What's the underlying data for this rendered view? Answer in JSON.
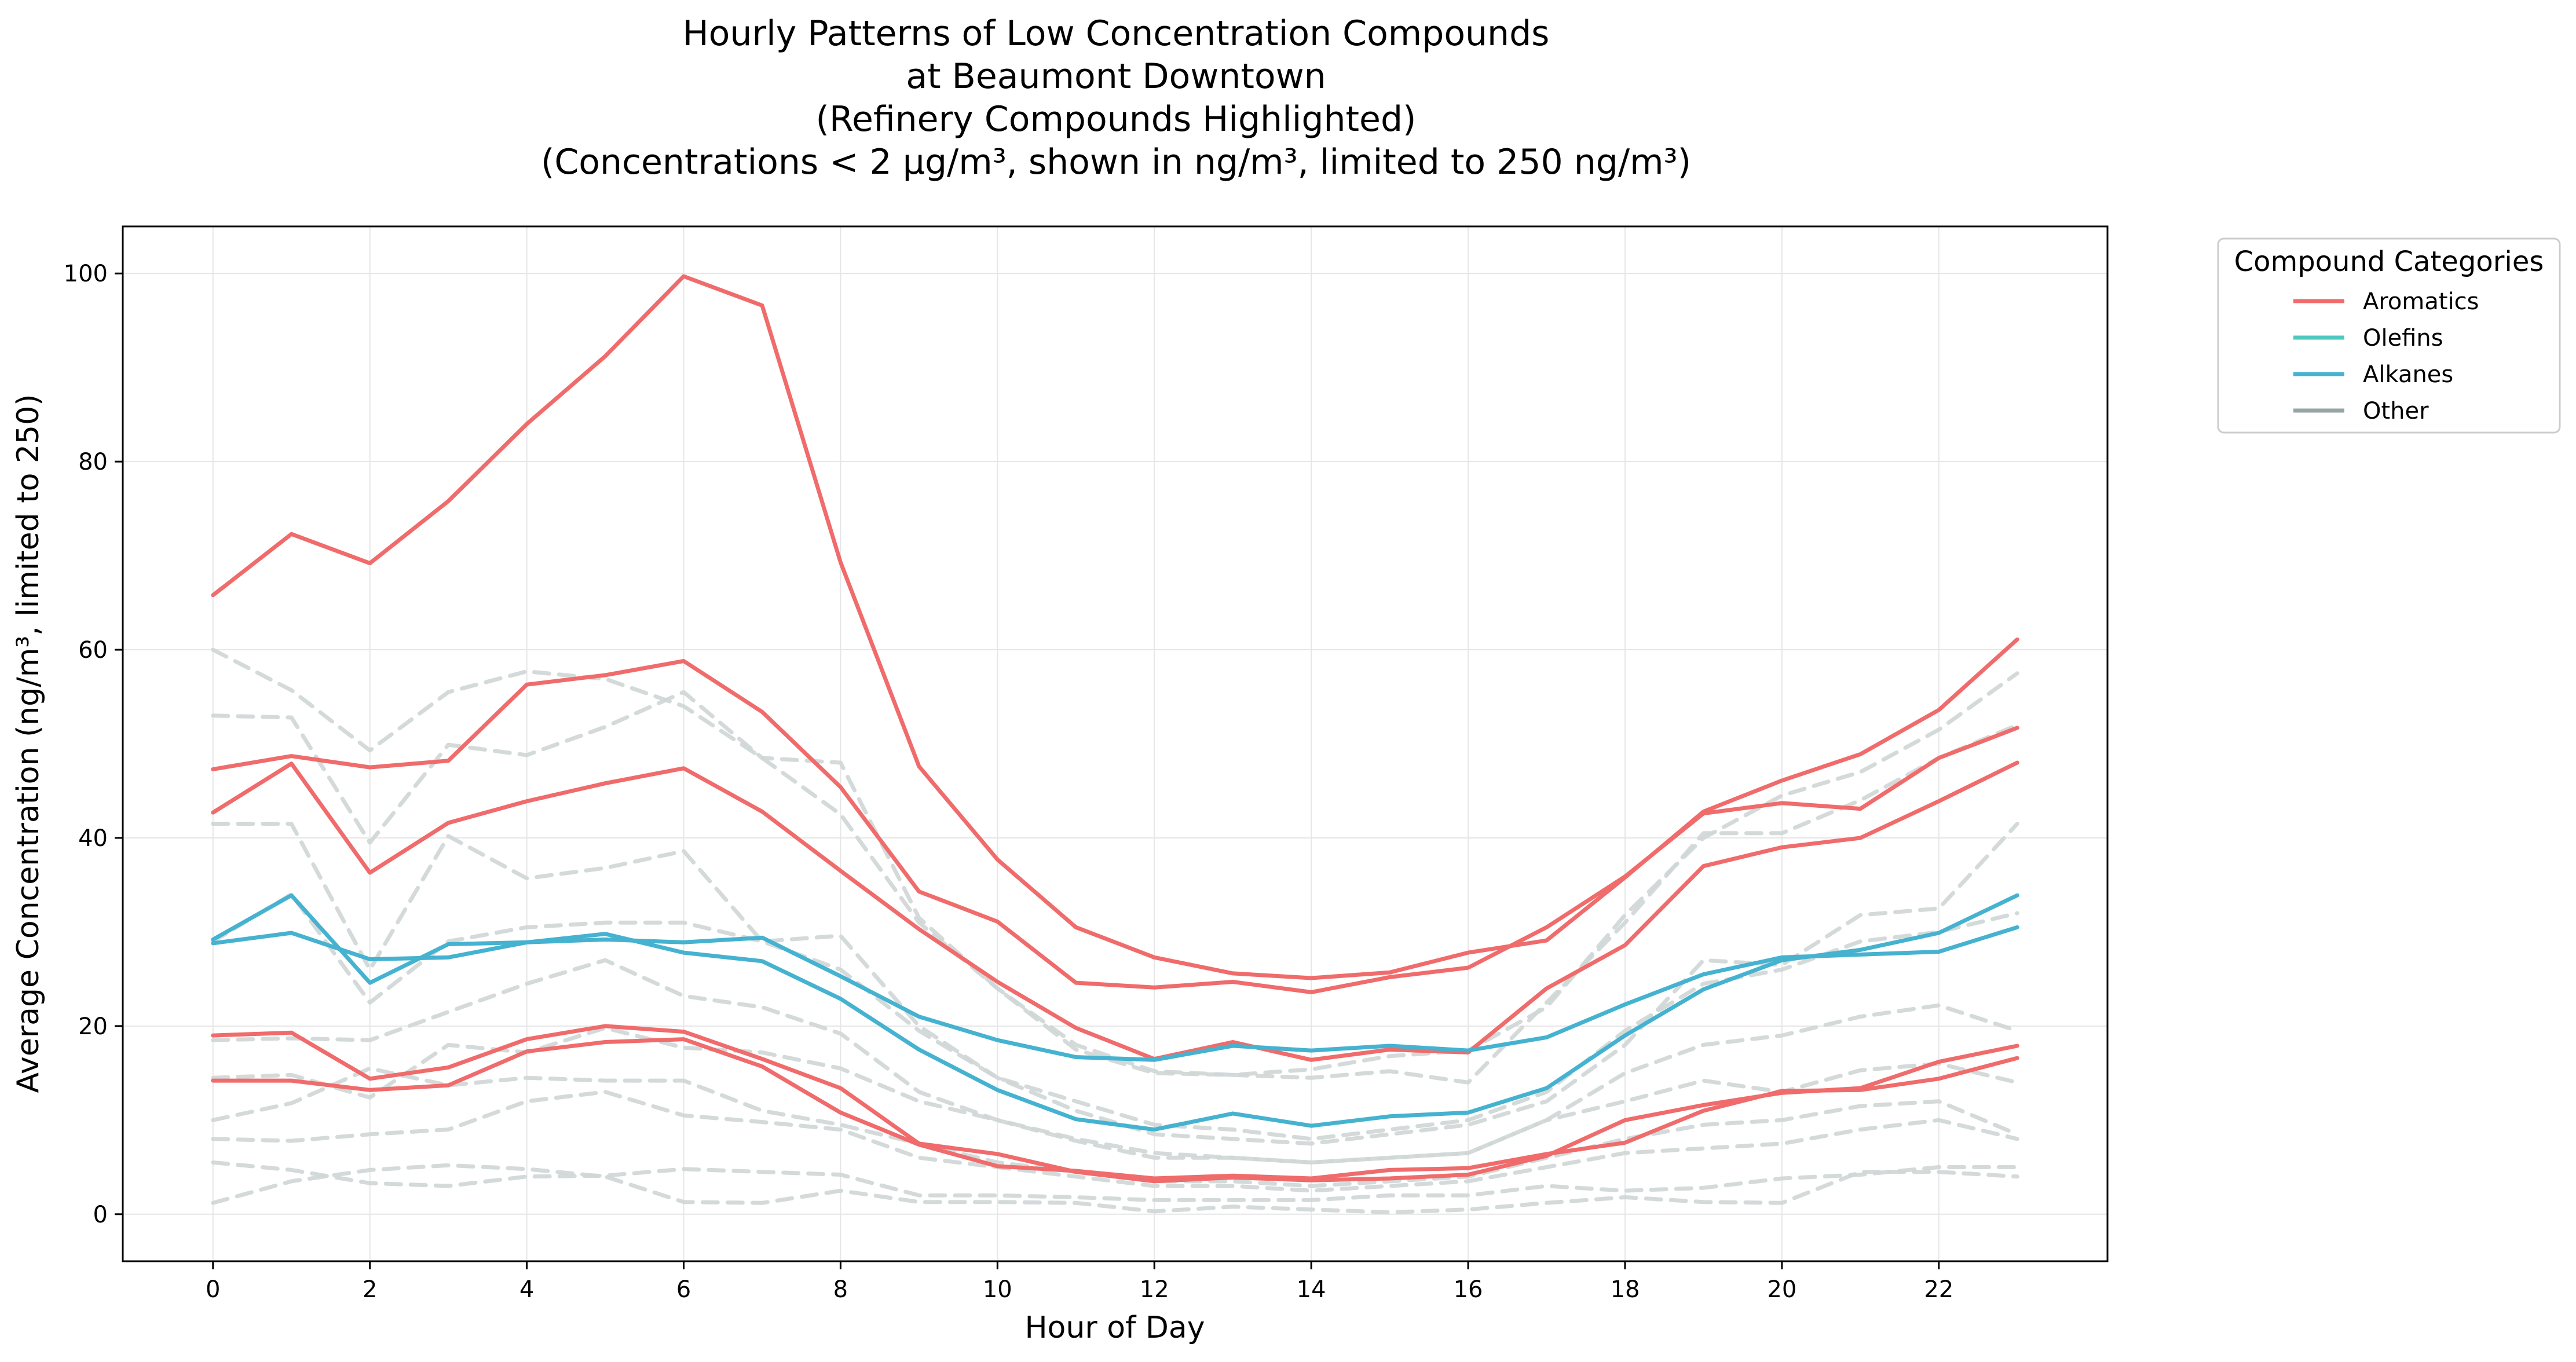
{
  "chart_data": {
    "type": "line",
    "title_lines": [
      "Hourly Patterns of Low Concentration Compounds",
      "at Beaumont Downtown",
      "(Refinery Compounds Highlighted)",
      "(Concentrations < 2 µg/m³, shown in ng/m³, limited to 250 ng/m³)"
    ],
    "xlabel": "Hour of Day",
    "ylabel": "Average Concentration (ng/m³, limited to 250)",
    "xlim": [
      -1.15,
      24.15
    ],
    "ylim": [
      -5,
      105
    ],
    "xticks": [
      0,
      2,
      4,
      6,
      8,
      10,
      12,
      14,
      16,
      18,
      20,
      22
    ],
    "yticks": [
      0,
      20,
      40,
      60,
      80,
      100
    ],
    "grid": true,
    "legend": {
      "title": "Compound Categories",
      "placement": "outside-top-right",
      "entries": [
        {
          "label": "Aromatics",
          "color": "#f06b6b"
        },
        {
          "label": "Olefins",
          "color": "#4ec9bf"
        },
        {
          "label": "Alkanes",
          "color": "#45b2d0"
        },
        {
          "label": "Other",
          "color": "#95a5a6"
        }
      ]
    },
    "x": [
      0,
      1,
      2,
      3,
      4,
      5,
      6,
      7,
      8,
      9,
      10,
      11,
      12,
      13,
      14,
      15,
      16,
      17,
      18,
      19,
      20,
      21,
      22,
      23
    ],
    "series": [
      {
        "category": "Other",
        "color": "#cfd6d6",
        "style": "dashed",
        "values": [
          60,
          55.7,
          49.3,
          55.5,
          57.7,
          56.9,
          54,
          48.5,
          42.5,
          31,
          24,
          18,
          15.2,
          14.8,
          15.4,
          16.8,
          17.4,
          22,
          31.8,
          40,
          44.5,
          47,
          51.5,
          57.5
        ]
      },
      {
        "category": "Other",
        "color": "#cfd6d6",
        "style": "dashed",
        "values": [
          53,
          52.8,
          39.5,
          49.9,
          48.8,
          51.8,
          55.5,
          48.5,
          48,
          31.5,
          24,
          17.5,
          15,
          14.8,
          14.5,
          15.2,
          14,
          22.5,
          31,
          40.5,
          40.5,
          44,
          48.5,
          52
        ]
      },
      {
        "category": "Other",
        "color": "#cfd6d6",
        "style": "dashed",
        "values": [
          41.5,
          41.5,
          26,
          40.2,
          35.7,
          36.8,
          38.6,
          29,
          29.6,
          20,
          14.5,
          11,
          8.5,
          8,
          7.5,
          8.5,
          9.5,
          12,
          18,
          27,
          26.5,
          31.8,
          32.5,
          41.5
        ]
      },
      {
        "category": "Other",
        "color": "#cfd6d6",
        "style": "dashed",
        "values": [
          29,
          34,
          22.5,
          29,
          30.5,
          31,
          31,
          29,
          26,
          19.5,
          14.5,
          12,
          9.5,
          9,
          8,
          9,
          10,
          13,
          19.5,
          24.5,
          26,
          29,
          30,
          32
        ]
      },
      {
        "category": "Other",
        "color": "#cfd6d6",
        "style": "dashed",
        "values": [
          18.5,
          18.7,
          18.5,
          21.5,
          24.5,
          27,
          23.2,
          22,
          19.2,
          13,
          10,
          8,
          6.5,
          6,
          5.5,
          6,
          6.5,
          10,
          15,
          18,
          19,
          21,
          22.2,
          19.5
        ]
      },
      {
        "category": "Other",
        "color": "#cfd6d6",
        "style": "dashed",
        "values": [
          14.5,
          14.8,
          12.4,
          18,
          17.2,
          19.8,
          17.7,
          17.2,
          15.5,
          12,
          10,
          7.8,
          6,
          6,
          5.5,
          6,
          6.5,
          10,
          12,
          14.2,
          13,
          15.3,
          16,
          14
        ]
      },
      {
        "category": "Other",
        "color": "#cfd6d6",
        "style": "dashed",
        "values": [
          10,
          11.8,
          15.5,
          13.7,
          14.5,
          14.2,
          14.2,
          11,
          9.5,
          7.5,
          5.5,
          4.5,
          3.5,
          3.5,
          3,
          3.5,
          4,
          6,
          8,
          9.5,
          10,
          11.5,
          12,
          8.5
        ]
      },
      {
        "category": "Other",
        "color": "#cfd6d6",
        "style": "dashed",
        "values": [
          8,
          7.8,
          8.5,
          9,
          12,
          13,
          10.5,
          9.8,
          9,
          6,
          5,
          4,
          3,
          3,
          2.5,
          3,
          3.5,
          5,
          6.5,
          7,
          7.5,
          9,
          10,
          8
        ]
      },
      {
        "category": "Other",
        "color": "#cfd6d6",
        "style": "dashed",
        "values": [
          5.5,
          4.7,
          3.3,
          3,
          4,
          4.1,
          4.8,
          4.5,
          4.2,
          2,
          2,
          1.8,
          1.5,
          1.5,
          1.5,
          2,
          2,
          3,
          2.5,
          2.8,
          3.8,
          4.2,
          5,
          5
        ]
      },
      {
        "category": "Other",
        "color": "#cfd6d6",
        "style": "dashed",
        "values": [
          1.2,
          3.5,
          4.7,
          5.2,
          4.8,
          4,
          1.3,
          1.2,
          2.5,
          1.3,
          1.3,
          1.2,
          0.3,
          0.8,
          0.5,
          0.2,
          0.5,
          1.2,
          1.8,
          1.3,
          1.2,
          4.5,
          4.5,
          4
        ]
      },
      {
        "category": "Aromatics",
        "color": "#f06b6b",
        "style": "solid",
        "values": [
          65.8,
          72.3,
          69.2,
          75.8,
          84,
          91.2,
          99.7,
          96.6,
          69.3,
          47.6,
          37.7,
          30.5,
          27.3,
          25.6,
          25.1,
          25.7,
          27.8,
          29.1,
          35.8,
          42.8,
          46.1,
          48.9,
          53.6,
          61.1
        ]
      },
      {
        "category": "Aromatics",
        "color": "#f06b6b",
        "style": "solid",
        "values": [
          47.3,
          48.7,
          47.5,
          48.2,
          56.3,
          57.3,
          58.8,
          53.4,
          45.4,
          34.3,
          31.1,
          24.6,
          24.1,
          24.7,
          23.6,
          25.2,
          26.2,
          30.5,
          35.9,
          42.6,
          43.7,
          43.1,
          48.5,
          51.7
        ]
      },
      {
        "category": "Aromatics",
        "color": "#f06b6b",
        "style": "solid",
        "values": [
          42.7,
          47.9,
          36.3,
          41.6,
          43.9,
          45.8,
          47.4,
          42.8,
          36.5,
          30.3,
          24.7,
          19.8,
          16.5,
          18.3,
          16.4,
          17.5,
          17.2,
          24,
          28.6,
          37,
          39,
          40,
          43.9,
          48
        ]
      },
      {
        "category": "Aromatics",
        "color": "#f06b6b",
        "style": "solid",
        "values": [
          19,
          19.3,
          14.4,
          15.6,
          18.6,
          20,
          19.4,
          16.5,
          13.4,
          7.5,
          6.4,
          4.5,
          3.5,
          3.9,
          3.6,
          3.8,
          4.2,
          6.2,
          10,
          11.6,
          12.9,
          13.4,
          16.2,
          17.9
        ]
      },
      {
        "category": "Aromatics",
        "color": "#f06b6b",
        "style": "solid",
        "values": [
          14.2,
          14.2,
          13.2,
          13.7,
          17.3,
          18.3,
          18.6,
          15.7,
          10.8,
          7.4,
          5.1,
          4.6,
          3.8,
          4.1,
          3.8,
          4.7,
          4.9,
          6.4,
          7.6,
          11,
          13.1,
          13.2,
          14.4,
          16.6
        ]
      },
      {
        "category": "Alkanes",
        "color": "#45b2d0",
        "style": "solid",
        "values": [
          29.2,
          33.9,
          24.6,
          28.7,
          28.9,
          29.2,
          28.9,
          29.4,
          25.3,
          21,
          18.5,
          16.7,
          16.4,
          17.9,
          17.4,
          17.9,
          17.4,
          18.8,
          22.3,
          25.5,
          27.3,
          27.6,
          27.9,
          30.5
        ]
      },
      {
        "category": "Alkanes",
        "color": "#45b2d0",
        "style": "solid",
        "values": [
          28.8,
          29.9,
          27.1,
          27.3,
          28.9,
          29.8,
          27.8,
          26.9,
          22.9,
          17.5,
          13.2,
          10.1,
          9,
          10.7,
          9.4,
          10.4,
          10.8,
          13.4,
          19,
          23.9,
          27,
          28.1,
          29.9,
          33.9
        ]
      }
    ]
  }
}
